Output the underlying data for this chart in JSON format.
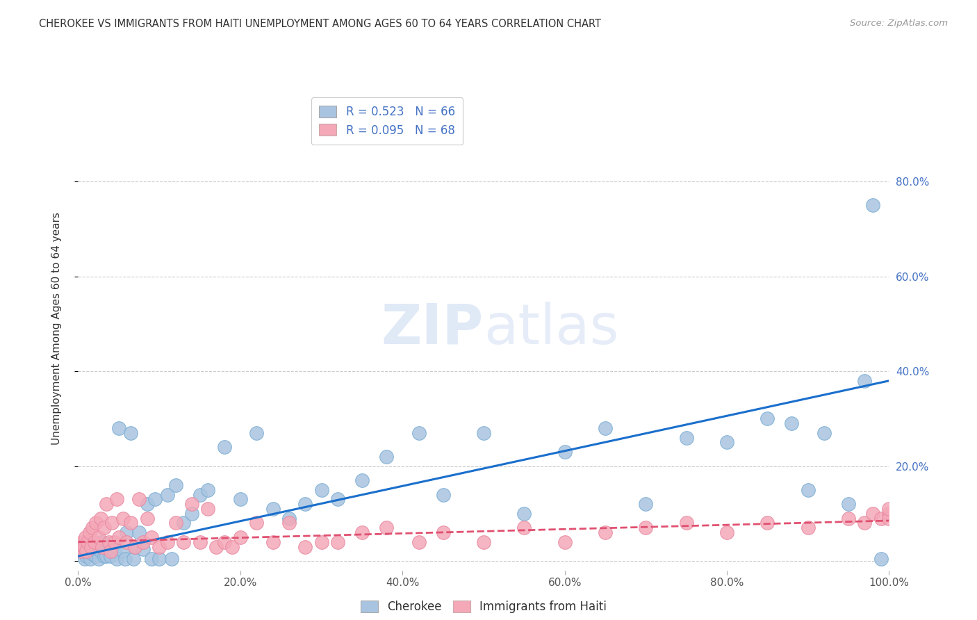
{
  "title": "CHEROKEE VS IMMIGRANTS FROM HAITI UNEMPLOYMENT AMONG AGES 60 TO 64 YEARS CORRELATION CHART",
  "source": "Source: ZipAtlas.com",
  "ylabel": "Unemployment Among Ages 60 to 64 years",
  "xlim": [
    0,
    1.0
  ],
  "ylim": [
    -0.02,
    1.0
  ],
  "xticks": [
    0.0,
    0.2,
    0.4,
    0.6,
    0.8,
    1.0
  ],
  "yticks": [
    0.0,
    0.2,
    0.4,
    0.6,
    0.8
  ],
  "xtick_labels": [
    "0.0%",
    "20.0%",
    "40.0%",
    "60.0%",
    "80.0%",
    "100.0%"
  ],
  "ytick_labels_right": [
    "",
    "20.0%",
    "40.0%",
    "60.0%",
    "80.0%"
  ],
  "background_color": "#ffffff",
  "grid_color": "#cccccc",
  "cherokee_color": "#a8c4e0",
  "cherokee_edge": "#7aadd4",
  "haiti_color": "#f4a8b8",
  "haiti_edge": "#e888a0",
  "cherokee_line_color": "#1a6fcc",
  "haiti_line_color": "#e05070",
  "legend_text_color": "#4472c4",
  "cherokee_x": [
    0.005,
    0.005,
    0.008,
    0.01,
    0.012,
    0.015,
    0.018,
    0.02,
    0.022,
    0.025,
    0.028,
    0.03,
    0.032,
    0.035,
    0.038,
    0.04,
    0.042,
    0.045,
    0.048,
    0.05,
    0.055,
    0.058,
    0.06,
    0.065,
    0.068,
    0.07,
    0.075,
    0.08,
    0.085,
    0.09,
    0.095,
    0.1,
    0.11,
    0.115,
    0.12,
    0.13,
    0.14,
    0.15,
    0.16,
    0.18,
    0.2,
    0.22,
    0.24,
    0.26,
    0.28,
    0.3,
    0.32,
    0.35,
    0.38,
    0.42,
    0.45,
    0.5,
    0.55,
    0.6,
    0.65,
    0.7,
    0.75,
    0.8,
    0.85,
    0.88,
    0.9,
    0.92,
    0.95,
    0.97,
    0.98,
    0.99
  ],
  "cherokee_y": [
    0.02,
    0.03,
    0.005,
    0.01,
    0.025,
    0.005,
    0.015,
    0.03,
    0.01,
    0.005,
    0.02,
    0.04,
    0.01,
    0.01,
    0.03,
    0.01,
    0.03,
    0.02,
    0.005,
    0.28,
    0.02,
    0.005,
    0.06,
    0.27,
    0.005,
    0.03,
    0.06,
    0.025,
    0.12,
    0.005,
    0.13,
    0.005,
    0.14,
    0.005,
    0.16,
    0.08,
    0.1,
    0.14,
    0.15,
    0.24,
    0.13,
    0.27,
    0.11,
    0.09,
    0.12,
    0.15,
    0.13,
    0.17,
    0.22,
    0.27,
    0.14,
    0.27,
    0.1,
    0.23,
    0.28,
    0.12,
    0.26,
    0.25,
    0.3,
    0.29,
    0.15,
    0.27,
    0.12,
    0.38,
    0.75,
    0.005
  ],
  "haiti_x": [
    0.002,
    0.003,
    0.005,
    0.007,
    0.009,
    0.01,
    0.012,
    0.014,
    0.016,
    0.018,
    0.02,
    0.022,
    0.025,
    0.028,
    0.03,
    0.032,
    0.035,
    0.038,
    0.04,
    0.042,
    0.045,
    0.048,
    0.05,
    0.055,
    0.06,
    0.065,
    0.07,
    0.075,
    0.08,
    0.085,
    0.09,
    0.1,
    0.11,
    0.12,
    0.13,
    0.14,
    0.15,
    0.16,
    0.17,
    0.18,
    0.19,
    0.2,
    0.22,
    0.24,
    0.26,
    0.28,
    0.3,
    0.32,
    0.35,
    0.38,
    0.42,
    0.45,
    0.5,
    0.55,
    0.6,
    0.65,
    0.7,
    0.75,
    0.8,
    0.85,
    0.9,
    0.95,
    0.97,
    0.98,
    0.99,
    1.0,
    1.0,
    1.0
  ],
  "haiti_y": [
    0.03,
    0.02,
    0.04,
    0.03,
    0.05,
    0.02,
    0.04,
    0.06,
    0.03,
    0.07,
    0.04,
    0.08,
    0.05,
    0.09,
    0.03,
    0.07,
    0.12,
    0.04,
    0.02,
    0.08,
    0.04,
    0.13,
    0.05,
    0.09,
    0.04,
    0.08,
    0.03,
    0.13,
    0.04,
    0.09,
    0.05,
    0.03,
    0.04,
    0.08,
    0.04,
    0.12,
    0.04,
    0.11,
    0.03,
    0.04,
    0.03,
    0.05,
    0.08,
    0.04,
    0.08,
    0.03,
    0.04,
    0.04,
    0.06,
    0.07,
    0.04,
    0.06,
    0.04,
    0.07,
    0.04,
    0.06,
    0.07,
    0.08,
    0.06,
    0.08,
    0.07,
    0.09,
    0.08,
    0.1,
    0.09,
    0.1,
    0.09,
    0.11
  ],
  "cherokee_R": 0.523,
  "cherokee_N": 66,
  "haiti_R": 0.095,
  "haiti_N": 68
}
